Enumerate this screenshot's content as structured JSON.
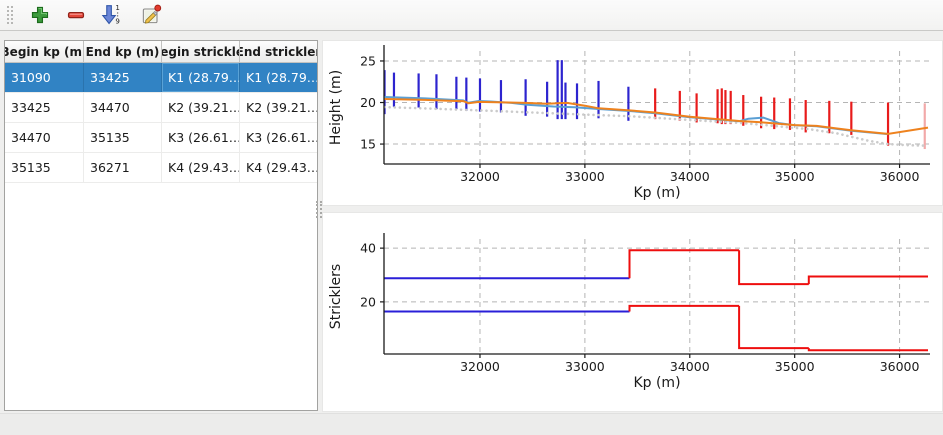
{
  "toolbar": {
    "buttons": [
      {
        "name": "add",
        "icon": "plus-icon"
      },
      {
        "name": "remove",
        "icon": "minus-icon"
      },
      {
        "name": "sort",
        "icon": "sort-numeric-icon"
      },
      {
        "name": "edit",
        "icon": "edit-icon"
      }
    ]
  },
  "table": {
    "headers": [
      "Begin kp (m)",
      "End kp (m)",
      "Begin strickler",
      "End strickler"
    ],
    "rows": [
      [
        "31090",
        "33425",
        "K1 (28.79…",
        "K1 (28.79…"
      ],
      [
        "33425",
        "34470",
        "K2 (39.21…",
        "K2 (39.21…"
      ],
      [
        "34470",
        "35135",
        "K3 (26.61…",
        "K3 (26.61…"
      ],
      [
        "35135",
        "36271",
        "K4 (29.43…",
        "K4 (29.43…"
      ]
    ],
    "selected_row_index": 0,
    "selection_color": "#3183c4"
  },
  "chart_data": [
    {
      "type": "line",
      "xlabel": "Kp (m)",
      "ylabel": "Height (m)",
      "xlim": [
        31085,
        36290
      ],
      "ylim": [
        12.6,
        26.2
      ],
      "xticks": [
        32000,
        33000,
        34000,
        35000,
        36000
      ],
      "yticks": [
        15,
        20,
        25
      ],
      "grid": true,
      "colors": {
        "selected": "#2d24cf",
        "unselected": "#e81b1b",
        "water": "#5a9fd4",
        "bed": "#ee821e",
        "dotted": "#cbcbcb"
      },
      "series": [
        {
          "name": "cross-sections-selected",
          "type": "vlines",
          "color": "#2d24cf",
          "points": [
            [
              31090,
              18.6,
              23.9
            ],
            [
              31180,
              19.5,
              23.6
            ],
            [
              31415,
              19.4,
              23.5
            ],
            [
              31585,
              19.2,
              23.4
            ],
            [
              31775,
              19.2,
              23.1
            ],
            [
              31870,
              19.0,
              23.0
            ],
            [
              32000,
              18.9,
              22.9
            ],
            [
              32200,
              18.8,
              22.7
            ],
            [
              32435,
              18.4,
              22.8
            ],
            [
              32640,
              18.3,
              22.5
            ],
            [
              32740,
              18.0,
              25.1
            ],
            [
              32780,
              18.0,
              25.1
            ],
            [
              32815,
              18.0,
              22.4
            ],
            [
              32925,
              18.0,
              22.3
            ],
            [
              33130,
              18.1,
              22.6
            ],
            [
              33415,
              17.8,
              21.9
            ]
          ]
        },
        {
          "name": "cross-sections-unselected",
          "type": "vlines",
          "color": "#e81b1b",
          "points": [
            [
              33670,
              18.0,
              21.7
            ],
            [
              33905,
              17.8,
              21.4
            ],
            [
              34065,
              17.6,
              21.1
            ],
            [
              34265,
              17.5,
              21.6
            ],
            [
              34305,
              17.4,
              21.7
            ],
            [
              34340,
              17.4,
              21.5
            ],
            [
              34390,
              17.4,
              21.4
            ],
            [
              34510,
              17.2,
              20.9
            ],
            [
              34680,
              16.9,
              20.7
            ],
            [
              34805,
              16.8,
              20.6
            ],
            [
              34955,
              16.7,
              20.5
            ],
            [
              35105,
              16.4,
              20.3
            ],
            [
              35330,
              16.3,
              20.2
            ],
            [
              35540,
              16.1,
              20.1
            ],
            [
              35890,
              14.8,
              20.0
            ]
          ]
        },
        {
          "name": "cross-section-edge",
          "type": "vlines",
          "color": "#f2a9a9",
          "points": [
            [
              36240,
              14.4,
              19.9
            ]
          ]
        },
        {
          "name": "dotted-bottom-line",
          "type": "dotted",
          "color": "#cbcbcb",
          "points": [
            [
              31090,
              19.45
            ],
            [
              31500,
              19.28
            ],
            [
              32000,
              19.05
            ],
            [
              32500,
              18.8
            ],
            [
              33000,
              18.55
            ],
            [
              33425,
              18.35
            ],
            [
              34000,
              17.9
            ],
            [
              34470,
              17.55
            ],
            [
              34700,
              17.3
            ],
            [
              35000,
              16.95
            ],
            [
              35135,
              16.8
            ],
            [
              35400,
              16.3
            ],
            [
              35700,
              15.4
            ],
            [
              35890,
              15.0
            ],
            [
              36100,
              14.85
            ],
            [
              36271,
              14.8
            ]
          ]
        },
        {
          "name": "water-level-line",
          "type": "line",
          "color": "#5a9fd4",
          "points": [
            [
              31090,
              20.66
            ],
            [
              31480,
              20.5
            ],
            [
              31700,
              20.35
            ],
            [
              31840,
              20.25
            ],
            [
              31890,
              19.98
            ],
            [
              31990,
              20.18
            ],
            [
              32100,
              20.12
            ],
            [
              32300,
              19.95
            ],
            [
              32450,
              19.72
            ],
            [
              32700,
              19.52
            ],
            [
              32900,
              19.43
            ],
            [
              33130,
              19.22
            ],
            [
              33425,
              18.98
            ],
            [
              33670,
              18.72
            ],
            [
              34000,
              18.22
            ],
            [
              34470,
              17.74
            ],
            [
              34560,
              18.05
            ],
            [
              34700,
              18.18
            ],
            [
              34850,
              17.52
            ],
            [
              35000,
              17.26
            ],
            [
              35210,
              17.14
            ],
            [
              35540,
              16.6
            ],
            [
              35890,
              16.2
            ]
          ]
        },
        {
          "name": "bed-level-line",
          "type": "line",
          "color": "#ee821e",
          "points": [
            [
              31090,
              20.42
            ],
            [
              31480,
              20.32
            ],
            [
              31700,
              20.22
            ],
            [
              31840,
              20.17
            ],
            [
              31890,
              19.92
            ],
            [
              31990,
              20.08
            ],
            [
              32100,
              20.05
            ],
            [
              32435,
              19.95
            ],
            [
              32640,
              19.86
            ],
            [
              32740,
              19.92
            ],
            [
              32830,
              19.95
            ],
            [
              33000,
              19.62
            ],
            [
              33130,
              19.3
            ],
            [
              33425,
              19.05
            ],
            [
              33670,
              18.8
            ],
            [
              34000,
              18.28
            ],
            [
              34470,
              17.78
            ],
            [
              34680,
              17.62
            ],
            [
              35000,
              17.28
            ],
            [
              35210,
              17.18
            ],
            [
              35540,
              16.65
            ],
            [
              35890,
              16.22
            ],
            [
              36271,
              16.98
            ]
          ]
        }
      ]
    },
    {
      "type": "step",
      "xlabel": "Kp (m)",
      "ylabel": "Stricklers",
      "xlim": [
        31085,
        36290
      ],
      "ylim": [
        0.6,
        43.4
      ],
      "xticks": [
        32000,
        33000,
        34000,
        35000,
        36000
      ],
      "yticks": [
        20,
        40
      ],
      "grid": true,
      "series": [
        {
          "name": "strickler-major-bed",
          "type": "step",
          "segments": [
            {
              "from": 31090,
              "to": 33425,
              "value": 28.79,
              "color": "#2a1fd8"
            },
            {
              "from": 33425,
              "to": 34470,
              "value": 39.21,
              "color": "#ee0e0e"
            },
            {
              "from": 34470,
              "to": 35135,
              "value": 26.61,
              "color": "#ee0e0e"
            },
            {
              "from": 35135,
              "to": 36271,
              "value": 29.43,
              "color": "#ee0e0e"
            }
          ]
        },
        {
          "name": "strickler-minor-bed",
          "type": "step",
          "segments": [
            {
              "from": 31090,
              "to": 33425,
              "value": 16.4,
              "color": "#2a1fd8"
            },
            {
              "from": 33425,
              "to": 34470,
              "value": 18.5,
              "color": "#ee0e0e"
            },
            {
              "from": 34470,
              "to": 35135,
              "value": 2.8,
              "color": "#ee0e0e"
            },
            {
              "from": 35135,
              "to": 36271,
              "value": 2.0,
              "color": "#ee0e0e"
            }
          ]
        }
      ]
    }
  ]
}
